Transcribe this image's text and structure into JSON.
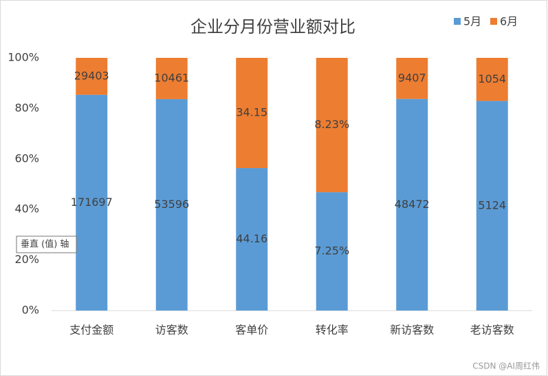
{
  "chart_data": {
    "type": "bar",
    "stacking": "percent",
    "title": "企业分月份营业额对比",
    "categories": [
      "支付金额",
      "访客数",
      "客单价",
      "转化率",
      "新访客数",
      "老访客数"
    ],
    "series": [
      {
        "name": "5月",
        "color": "#5b9bd5",
        "values": [
          171697,
          53596,
          44.16,
          7.25,
          48472,
          5124
        ],
        "value_labels": [
          "171697",
          "53596",
          "44.16",
          "7.25%",
          "48472",
          "5124"
        ]
      },
      {
        "name": "6月",
        "color": "#ed7d31",
        "values": [
          29403,
          10461,
          34.15,
          8.23,
          9407,
          1054
        ],
        "value_labels": [
          "29403",
          "10461",
          "34.15",
          "8.23%",
          "9407",
          "1054"
        ]
      }
    ],
    "ylim": [
      0,
      100
    ],
    "yticks": [
      {
        "value": 0,
        "label": "0%"
      },
      {
        "value": 20,
        "label": "20%"
      },
      {
        "value": 40,
        "label": "40%"
      },
      {
        "value": 60,
        "label": "60%"
      },
      {
        "value": 80,
        "label": "80%"
      },
      {
        "value": 100,
        "label": "100%"
      }
    ],
    "grid": false,
    "legend": "top-right",
    "tooltip": "垂直 (值) 轴",
    "watermark": "CSDN @AI周红伟"
  }
}
